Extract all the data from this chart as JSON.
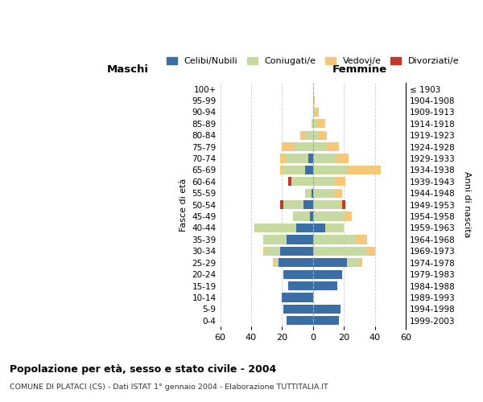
{
  "age_groups": [
    "0-4",
    "5-9",
    "10-14",
    "15-19",
    "20-24",
    "25-29",
    "30-34",
    "35-39",
    "40-44",
    "45-49",
    "50-54",
    "55-59",
    "60-64",
    "65-69",
    "70-74",
    "75-79",
    "80-84",
    "85-89",
    "90-94",
    "95-99",
    "100+"
  ],
  "birth_years": [
    "1999-2003",
    "1994-1998",
    "1989-1993",
    "1984-1988",
    "1979-1983",
    "1974-1978",
    "1969-1973",
    "1964-1968",
    "1959-1963",
    "1954-1958",
    "1949-1953",
    "1944-1948",
    "1939-1943",
    "1934-1938",
    "1929-1933",
    "1924-1928",
    "1919-1923",
    "1914-1918",
    "1909-1913",
    "1904-1908",
    "≤ 1903"
  ],
  "males": {
    "celibi": [
      17,
      19,
      20,
      16,
      19,
      22,
      21,
      17,
      11,
      2,
      6,
      1,
      0,
      5,
      3,
      0,
      0,
      0,
      0,
      0,
      0
    ],
    "coniugati": [
      0,
      0,
      0,
      0,
      0,
      3,
      10,
      15,
      27,
      11,
      13,
      4,
      14,
      14,
      14,
      12,
      5,
      1,
      0,
      0,
      0
    ],
    "vedovi": [
      0,
      0,
      0,
      0,
      0,
      1,
      1,
      0,
      0,
      0,
      0,
      0,
      0,
      2,
      4,
      8,
      3,
      0,
      0,
      0,
      0
    ],
    "divorziati": [
      0,
      0,
      0,
      0,
      0,
      0,
      0,
      0,
      0,
      0,
      2,
      0,
      2,
      0,
      0,
      0,
      0,
      0,
      0,
      0,
      0
    ]
  },
  "females": {
    "nubili": [
      17,
      18,
      0,
      16,
      19,
      22,
      0,
      0,
      8,
      0,
      0,
      0,
      0,
      0,
      0,
      0,
      0,
      0,
      0,
      0,
      0
    ],
    "coniugate": [
      0,
      0,
      0,
      0,
      0,
      8,
      35,
      27,
      12,
      20,
      17,
      14,
      14,
      22,
      15,
      9,
      4,
      3,
      1,
      0,
      0
    ],
    "vedove": [
      0,
      0,
      0,
      0,
      0,
      2,
      5,
      8,
      0,
      5,
      2,
      5,
      7,
      22,
      8,
      8,
      5,
      5,
      3,
      1,
      0
    ],
    "divorziate": [
      0,
      0,
      0,
      0,
      0,
      0,
      0,
      0,
      0,
      0,
      2,
      0,
      0,
      0,
      0,
      0,
      0,
      0,
      0,
      0,
      0
    ]
  },
  "colors": {
    "celibi": "#3a6ea5",
    "coniugati": "#c5d9a0",
    "vedovi": "#f5c77a",
    "divorziati": "#c0392b"
  },
  "title": "Popolazione per età, sesso e stato civile - 2004",
  "subtitle": "COMUNE DI PLATACI (CS) - Dati ISTAT 1° gennaio 2004 - Elaborazione TUTTITALIA.IT",
  "xlabel_left": "Maschi",
  "xlabel_right": "Femmine",
  "ylabel": "Fasce di età",
  "ylabel_right": "Anni di nascita",
  "xlim": 60,
  "legend_labels": [
    "Celibi/Nubili",
    "Coniugati/e",
    "Vedovi/e",
    "Divorziati/e"
  ]
}
